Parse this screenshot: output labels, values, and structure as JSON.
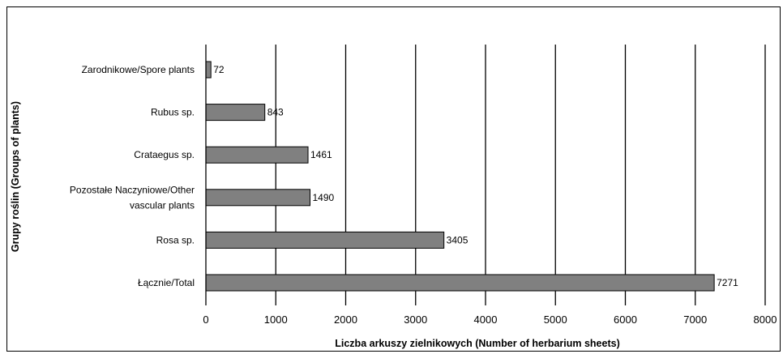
{
  "chart_data": {
    "type": "bar",
    "orientation": "horizontal",
    "categories": [
      [
        "Zarodnikowe/Spore plants"
      ],
      [
        "Rubus sp."
      ],
      [
        "Crataegus sp."
      ],
      [
        "Pozostałe Naczyniowe/Other",
        "vascular plants"
      ],
      [
        "Rosa sp."
      ],
      [
        "Łącznie/Total"
      ]
    ],
    "values": [
      72,
      843,
      1461,
      1490,
      3405,
      7271
    ],
    "data_labels": [
      "72",
      "843",
      "1461",
      "1490",
      "3405",
      "7271"
    ],
    "xlabel": "Liczba arkuszy zielnikowych (Number of herbarium sheets)",
    "ylabel": "Grupy roślin (Groups of plants)",
    "xlim": [
      0,
      8000
    ],
    "x_ticks": [
      "0",
      "1000",
      "2000",
      "3000",
      "4000",
      "5000",
      "6000",
      "7000",
      "8000"
    ],
    "x_tick_values": [
      0,
      1000,
      2000,
      3000,
      4000,
      5000,
      6000,
      7000,
      8000
    ],
    "grid": "vertical major gridlines",
    "legend": "none",
    "colors": {
      "bar_fill": "#808080",
      "bar_stroke": "#000000",
      "gridline": "#000000",
      "background": "#ffffff"
    }
  }
}
